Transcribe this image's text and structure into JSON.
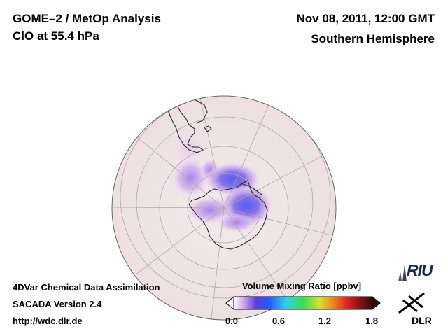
{
  "header": {
    "title": "GOME–2 / MetOp Analysis",
    "species": "ClO at 55.4 hPa",
    "datetime": "Nov 08, 2011, 12:00 GMT",
    "hemisphere": "Southern Hemisphere"
  },
  "footer": {
    "line1": "4DVar Chemical Data Assimilation",
    "line2": "SACADA Version 2.4",
    "line3": "http://wdc.dlr.de"
  },
  "colorbar": {
    "title": "Volume Mixing Ratio [ppbv]",
    "ticks": [
      "0.0",
      "0.6",
      "1.2",
      "1.8"
    ],
    "range": [
      0.0,
      1.8
    ],
    "colors": [
      "#ffffff",
      "#c89be8",
      "#5a3ce0",
      "#2060ff",
      "#30d0f0",
      "#30e050",
      "#d8e030",
      "#f08020",
      "#e02020",
      "#801010",
      "#2a1010"
    ]
  },
  "logos": {
    "riu": "RIU",
    "dlr": "DLR"
  },
  "map": {
    "projection": "orthographic",
    "center": "South Pole",
    "background_color": "#f2e6e8",
    "features": [
      "Antarctica",
      "South America",
      "Antarctic Peninsula"
    ]
  }
}
